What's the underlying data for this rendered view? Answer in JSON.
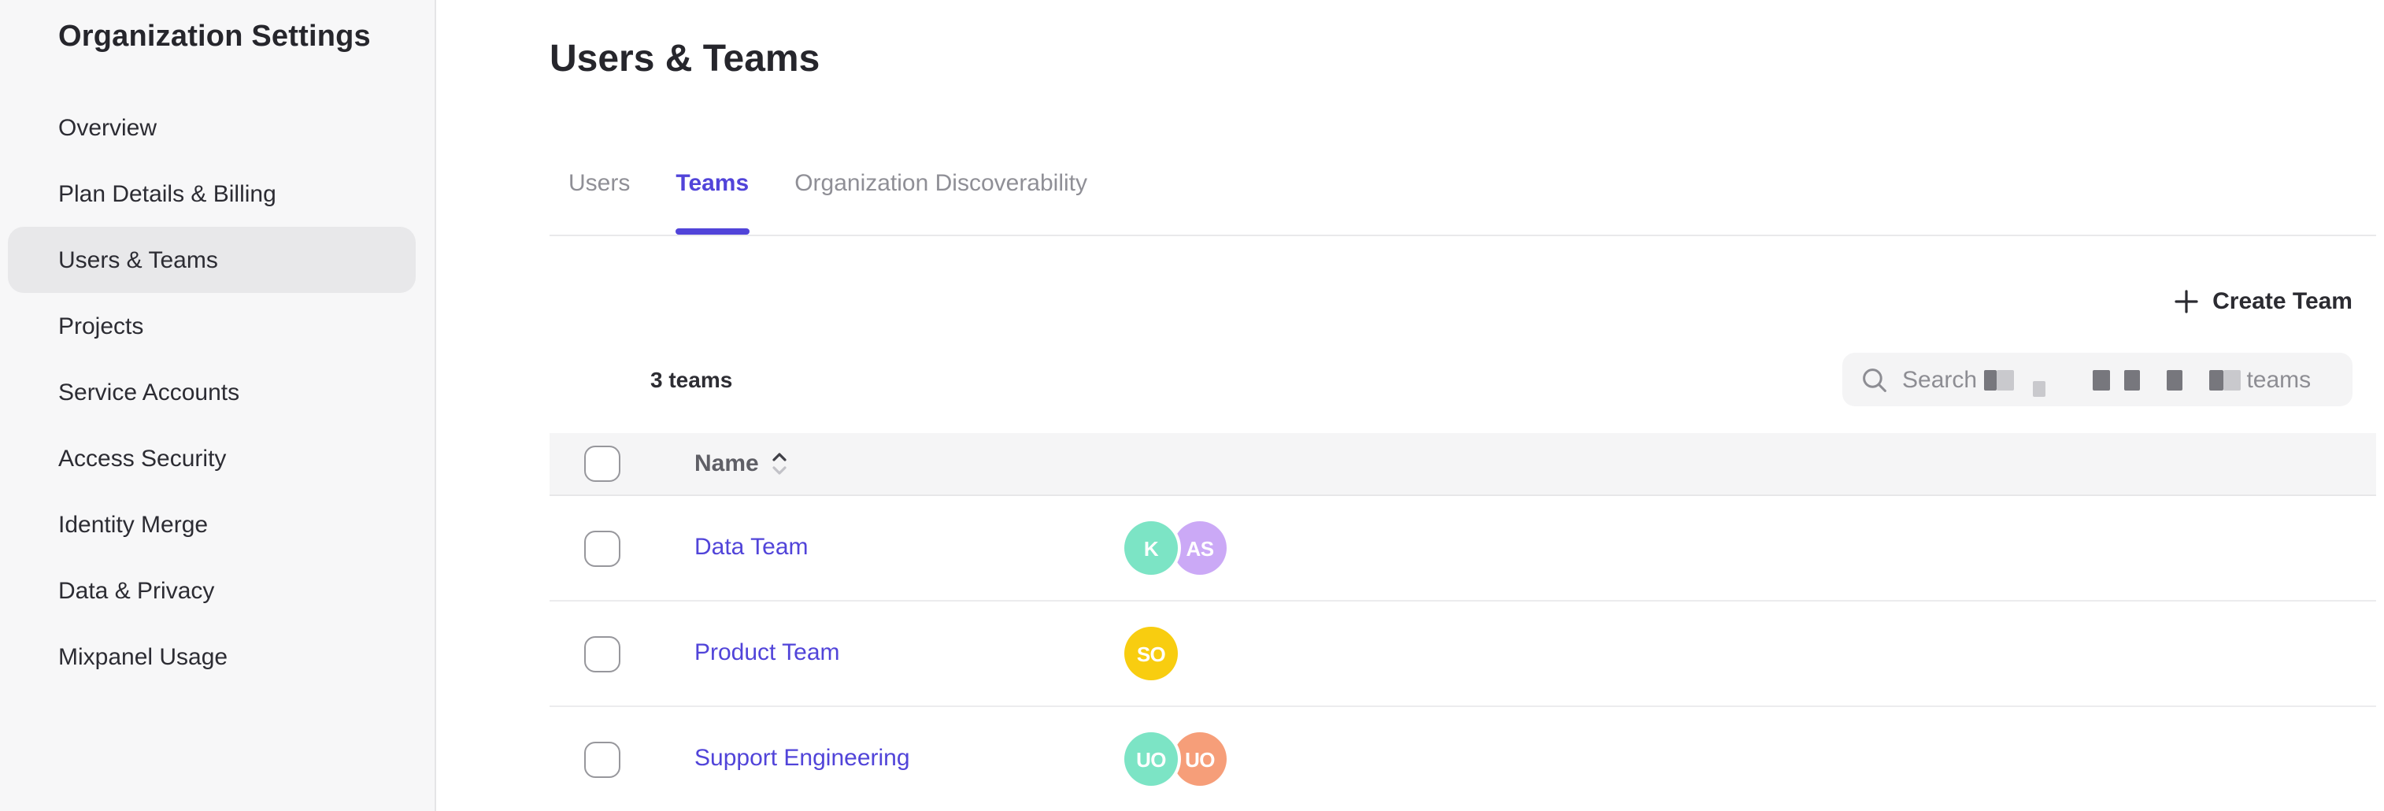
{
  "colors": {
    "accent_purple": "#5144d9",
    "sidebar_bg": "#f7f7f8",
    "sidebar_selected_bg": "#e8e8ea",
    "table_header_bg": "#f5f5f6",
    "avatar_teal": "#7ce4c5",
    "avatar_lavender": "#cba9f6",
    "avatar_yellow": "#f8cd10",
    "avatar_salmon": "#f69e79"
  },
  "sidebar": {
    "title": "Organization Settings",
    "items": [
      {
        "label": "Overview",
        "active": false
      },
      {
        "label": "Plan Details & Billing",
        "active": false
      },
      {
        "label": "Users & Teams",
        "active": true
      },
      {
        "label": "Projects",
        "active": false
      },
      {
        "label": "Service Accounts",
        "active": false
      },
      {
        "label": "Access Security",
        "active": false
      },
      {
        "label": "Identity Merge",
        "active": false
      },
      {
        "label": "Data & Privacy",
        "active": false
      },
      {
        "label": "Mixpanel Usage",
        "active": false
      }
    ]
  },
  "main": {
    "title": "Users & Teams",
    "tabs": [
      {
        "label": "Users",
        "active": false
      },
      {
        "label": "Teams",
        "active": true
      },
      {
        "label": "Organization Discoverability",
        "active": false
      }
    ],
    "create_team_label": "Create Team",
    "teams_count_label": "3 teams",
    "search": {
      "placeholder_prefix": "Search",
      "placeholder_suffix": "teams",
      "placeholder_redacted": true
    },
    "table": {
      "columns": [
        {
          "label": "Name",
          "sortable": true
        }
      ],
      "rows": [
        {
          "name": "Data Team",
          "members": [
            {
              "initials": "K",
              "color": "#7ce4c5"
            },
            {
              "initials": "AS",
              "color": "#cba9f6"
            }
          ]
        },
        {
          "name": "Product Team",
          "members": [
            {
              "initials": "SO",
              "color": "#f8cd10"
            }
          ]
        },
        {
          "name": "Support Engineering",
          "members": [
            {
              "initials": "UO",
              "color": "#7ce4c5"
            },
            {
              "initials": "UO",
              "color": "#f69e79"
            }
          ]
        }
      ]
    }
  }
}
